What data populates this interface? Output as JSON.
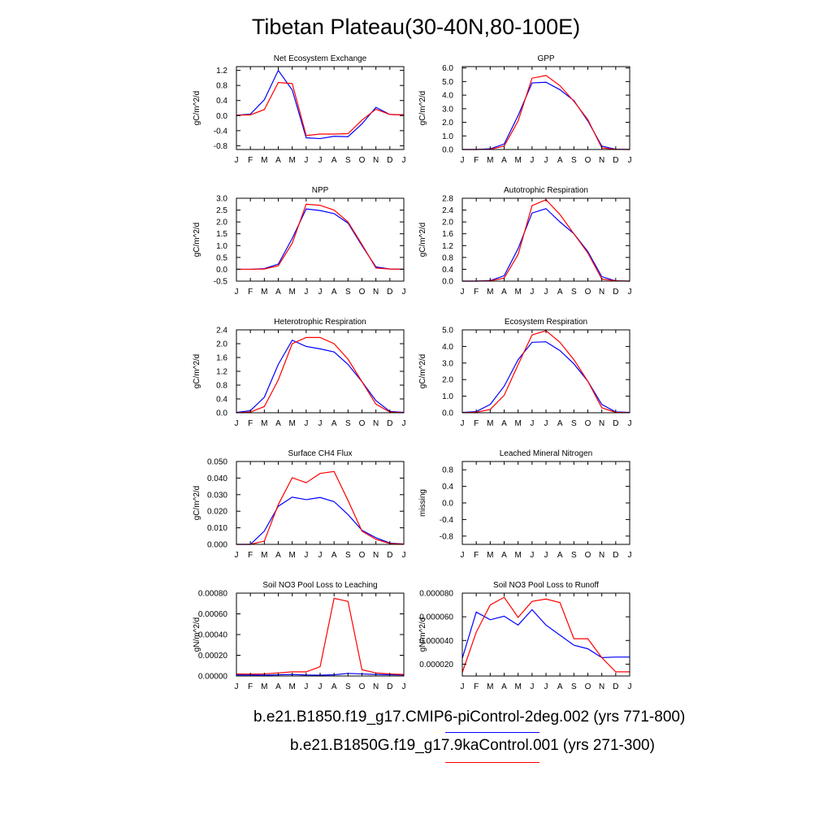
{
  "title": "Tibetan Plateau(30-40N,80-100E)",
  "colors": {
    "series1": "#0000ff",
    "series2": "#ff0000"
  },
  "legend": [
    {
      "label": "b.e21.B1850.f19_g17.CMIP6-piControl-2deg.002 (yrs 771-800)",
      "color": "#0000ff"
    },
    {
      "label": "b.e21.B1850G.f19_g17.9kaControl.001 (yrs 271-300)",
      "color": "#ff0000"
    }
  ],
  "chart_data": [
    {
      "type": "line",
      "title": "Net Ecosystem Exchange",
      "ylabel": "gC/m^2/d",
      "xlabel": "",
      "x": [
        "J",
        "F",
        "M",
        "A",
        "M",
        "J",
        "J",
        "A",
        "S",
        "O",
        "N",
        "D",
        "J"
      ],
      "ylim": [
        -0.9,
        1.3
      ],
      "yticks": [
        -0.8,
        -0.4,
        0.0,
        0.4,
        0.8,
        1.2
      ],
      "ytick_labels": [
        "-0.8",
        "-0.4",
        "0.0",
        "0.4",
        "0.8",
        "1.2"
      ],
      "series": [
        {
          "values": [
            0.01,
            0.04,
            0.42,
            1.2,
            0.68,
            -0.59,
            -0.61,
            -0.55,
            -0.56,
            -0.22,
            0.22,
            0.03,
            0.02
          ]
        },
        {
          "values": [
            0.01,
            0.02,
            0.16,
            0.88,
            0.85,
            -0.53,
            -0.49,
            -0.49,
            -0.48,
            -0.12,
            0.17,
            0.03,
            0.02
          ]
        }
      ]
    },
    {
      "type": "line",
      "title": "GPP",
      "ylabel": "gC/m^2/d",
      "xlabel": "",
      "x": [
        "J",
        "F",
        "M",
        "A",
        "M",
        "J",
        "J",
        "A",
        "S",
        "O",
        "N",
        "D",
        "J"
      ],
      "ylim": [
        0,
        6.1
      ],
      "yticks": [
        0.0,
        1.0,
        2.0,
        3.0,
        4.0,
        5.0,
        6.0
      ],
      "ytick_labels": [
        "0.0",
        "1.0",
        "2.0",
        "3.0",
        "4.0",
        "5.0",
        "6.0"
      ],
      "series": [
        {
          "values": [
            0.0,
            0.0,
            0.05,
            0.4,
            2.5,
            4.9,
            4.95,
            4.4,
            3.6,
            2.1,
            0.25,
            0.02,
            0.0
          ]
        },
        {
          "values": [
            0.0,
            0.0,
            0.02,
            0.25,
            2.1,
            5.25,
            5.45,
            4.7,
            3.55,
            2.2,
            0.12,
            0.01,
            0.0
          ]
        }
      ]
    },
    {
      "type": "line",
      "title": "NPP",
      "ylabel": "gC/m^2/d",
      "xlabel": "",
      "x": [
        "J",
        "F",
        "M",
        "A",
        "M",
        "J",
        "J",
        "A",
        "S",
        "O",
        "N",
        "D",
        "J"
      ],
      "ylim": [
        -0.5,
        3.0
      ],
      "yticks": [
        -0.5,
        0.0,
        0.5,
        1.0,
        1.5,
        2.0,
        2.5,
        3.0
      ],
      "ytick_labels": [
        "-0.5",
        "0.0",
        "0.5",
        "1.0",
        "1.5",
        "2.0",
        "2.5",
        "3.0"
      ],
      "series": [
        {
          "values": [
            0.0,
            0.0,
            0.03,
            0.22,
            1.3,
            2.55,
            2.48,
            2.35,
            1.95,
            1.0,
            0.1,
            0.01,
            0.0
          ]
        },
        {
          "values": [
            0.0,
            0.0,
            0.01,
            0.15,
            1.1,
            2.75,
            2.7,
            2.5,
            2.0,
            1.05,
            0.05,
            0.01,
            0.0
          ]
        }
      ]
    },
    {
      "type": "line",
      "title": "Autotrophic Respiration",
      "ylabel": "gC/m^2/d",
      "xlabel": "",
      "x": [
        "J",
        "F",
        "M",
        "A",
        "M",
        "J",
        "J",
        "A",
        "S",
        "O",
        "N",
        "D",
        "J"
      ],
      "ylim": [
        0,
        2.8
      ],
      "yticks": [
        0.0,
        0.4,
        0.8,
        1.2,
        1.6,
        2.0,
        2.4,
        2.8
      ],
      "ytick_labels": [
        "0.0",
        "0.4",
        "0.8",
        "1.2",
        "1.6",
        "2.0",
        "2.4",
        "2.8"
      ],
      "series": [
        {
          "values": [
            0.0,
            0.0,
            0.02,
            0.18,
            1.1,
            2.3,
            2.45,
            2.0,
            1.6,
            1.0,
            0.15,
            0.01,
            0.0
          ]
        },
        {
          "values": [
            0.0,
            0.0,
            0.01,
            0.1,
            0.9,
            2.55,
            2.75,
            2.25,
            1.6,
            0.95,
            0.07,
            0.01,
            0.0
          ]
        }
      ]
    },
    {
      "type": "line",
      "title": "Heterotrophic Respiration",
      "ylabel": "gC/m^2/d",
      "xlabel": "",
      "x": [
        "J",
        "F",
        "M",
        "A",
        "M",
        "J",
        "J",
        "A",
        "S",
        "O",
        "N",
        "D",
        "J"
      ],
      "ylim": [
        0,
        2.4
      ],
      "yticks": [
        0.0,
        0.4,
        0.8,
        1.2,
        1.6,
        2.0,
        2.4
      ],
      "ytick_labels": [
        "0.0",
        "0.4",
        "0.8",
        "1.2",
        "1.6",
        "2.0",
        "2.4"
      ],
      "series": [
        {
          "values": [
            0.01,
            0.06,
            0.45,
            1.4,
            2.1,
            1.92,
            1.85,
            1.76,
            1.4,
            0.9,
            0.35,
            0.04,
            0.01
          ]
        },
        {
          "values": [
            0.0,
            0.02,
            0.18,
            0.95,
            2.0,
            2.18,
            2.18,
            2.0,
            1.55,
            0.9,
            0.25,
            0.02,
            0.0
          ]
        }
      ]
    },
    {
      "type": "line",
      "title": "Ecosystem Respiration",
      "ylabel": "gC/m^2/d",
      "xlabel": "",
      "x": [
        "J",
        "F",
        "M",
        "A",
        "M",
        "J",
        "J",
        "A",
        "S",
        "O",
        "N",
        "D",
        "J"
      ],
      "ylim": [
        0,
        5.0
      ],
      "yticks": [
        0.0,
        1.0,
        2.0,
        3.0,
        4.0,
        5.0
      ],
      "ytick_labels": [
        "0.0",
        "1.0",
        "2.0",
        "3.0",
        "4.0",
        "5.0"
      ],
      "series": [
        {
          "values": [
            0.02,
            0.07,
            0.5,
            1.6,
            3.2,
            4.25,
            4.28,
            3.75,
            2.95,
            1.9,
            0.5,
            0.05,
            0.02
          ]
        },
        {
          "values": [
            0.01,
            0.03,
            0.2,
            1.05,
            2.9,
            4.7,
            4.95,
            4.25,
            3.2,
            1.9,
            0.3,
            0.02,
            0.01
          ]
        }
      ]
    },
    {
      "type": "line",
      "title": "Surface CH4 Flux",
      "ylabel": "gC/m^2/d",
      "xlabel": "",
      "x": [
        "J",
        "F",
        "M",
        "A",
        "M",
        "J",
        "J",
        "A",
        "S",
        "O",
        "N",
        "D",
        "J"
      ],
      "ylim": [
        0,
        0.05
      ],
      "yticks": [
        0.0,
        0.01,
        0.02,
        0.03,
        0.04,
        0.05
      ],
      "ytick_labels": [
        "0.000",
        "0.010",
        "0.020",
        "0.030",
        "0.040",
        "0.050"
      ],
      "series": [
        {
          "values": [
            0.0,
            0.0,
            0.008,
            0.023,
            0.0285,
            0.027,
            0.0283,
            0.0258,
            0.018,
            0.0085,
            0.004,
            0.0008,
            0.0002
          ]
        },
        {
          "values": [
            0.0,
            0.0,
            0.002,
            0.024,
            0.0402,
            0.0372,
            0.0428,
            0.044,
            0.0265,
            0.008,
            0.003,
            0.0005,
            0.0002
          ]
        }
      ]
    },
    {
      "type": "line",
      "title": "Leached Mineral Nitrogen",
      "ylabel": "missing",
      "xlabel": "",
      "x": [
        "J",
        "F",
        "M",
        "A",
        "M",
        "J",
        "J",
        "A",
        "S",
        "O",
        "N",
        "D",
        "J"
      ],
      "ylim": [
        -1.0,
        1.0
      ],
      "yticks": [
        -0.8,
        -0.4,
        0.0,
        0.4,
        0.8
      ],
      "ytick_labels": [
        "-0.8",
        "-0.4",
        "0.0",
        "0.4",
        "0.8"
      ],
      "series": []
    },
    {
      "type": "line",
      "title": "Soil NO3 Pool Loss to Leaching",
      "ylabel": "gN/m^2/d",
      "xlabel": "",
      "x": [
        "J",
        "F",
        "M",
        "A",
        "M",
        "J",
        "J",
        "A",
        "S",
        "O",
        "N",
        "D",
        "J"
      ],
      "ylim": [
        0,
        0.0008
      ],
      "yticks": [
        0.0,
        0.0002,
        0.0004,
        0.0006,
        0.0008
      ],
      "ytick_labels": [
        "0.00000",
        "0.00020",
        "0.00040",
        "0.00060",
        "0.00080"
      ],
      "series": [
        {
          "values": [
            1e-05,
            1e-05,
            8e-06,
            1.2e-05,
            1.5e-05,
            1e-05,
            8e-06,
            1.2e-05,
            2.5e-05,
            2e-05,
            1.5e-05,
            1.2e-05,
            1e-05
          ]
        },
        {
          "values": [
            2e-05,
            1.8e-05,
            2e-05,
            3e-05,
            4e-05,
            4e-05,
            9e-05,
            0.00075,
            0.00072,
            6e-05,
            3e-05,
            2e-05,
            1.5e-05
          ]
        }
      ]
    },
    {
      "type": "line",
      "title": "Soil NO3 Pool Loss to Runoff",
      "ylabel": "gN/m^2/d",
      "xlabel": "",
      "x": [
        "J",
        "F",
        "M",
        "A",
        "M",
        "J",
        "J",
        "A",
        "S",
        "O",
        "N",
        "D",
        "J"
      ],
      "ylim": [
        1e-05,
        8e-05
      ],
      "yticks": [
        2e-05,
        4e-05,
        6e-05,
        8e-05
      ],
      "ytick_labels": [
        "0.000020",
        "0.000040",
        "0.000060",
        "0.000080"
      ],
      "series": [
        {
          "values": [
            2.5e-05,
            6.4e-05,
            5.75e-05,
            6.05e-05,
            5.3e-05,
            6.6e-05,
            5.3e-05,
            4.45e-05,
            3.6e-05,
            3.3e-05,
            2.55e-05,
            2.6e-05,
            2.6e-05
          ]
        },
        {
          "values": [
            1.3e-05,
            4.7e-05,
            7e-05,
            7.65e-05,
            5.95e-05,
            7.3e-05,
            7.5e-05,
            7.2e-05,
            4.15e-05,
            4.15e-05,
            2.55e-05,
            1.35e-05,
            1.35e-05
          ]
        }
      ]
    }
  ]
}
